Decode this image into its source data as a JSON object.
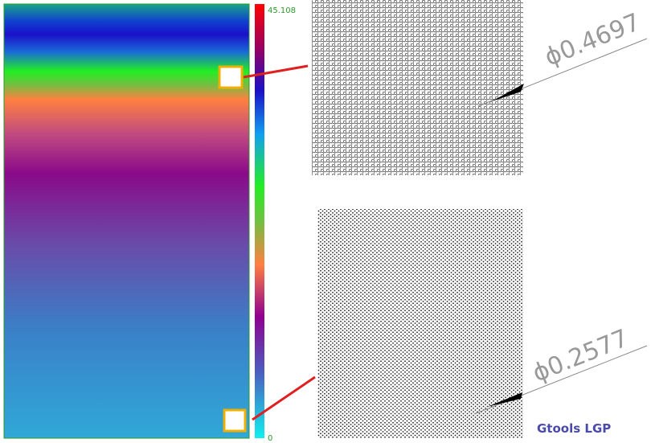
{
  "colorbar": {
    "max": 45.108,
    "min": 0
  },
  "callouts": [
    {
      "dimension": "ϕ0.4697"
    },
    {
      "dimension": "ϕ0.2577"
    }
  ],
  "watermark": "Gtools LGP"
}
